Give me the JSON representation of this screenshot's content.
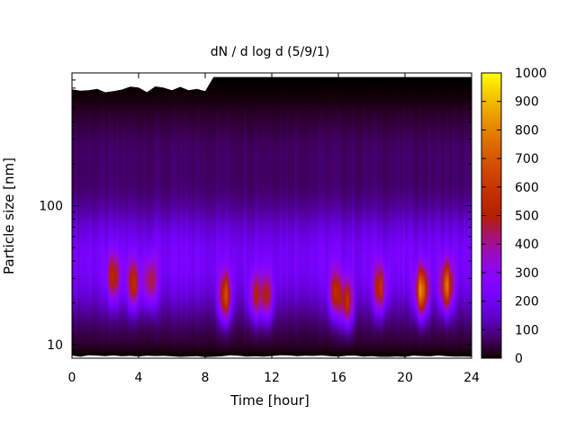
{
  "chart_data": {
    "type": "heatmap",
    "title": "dN / d log d (5/9/1)",
    "xlabel": "Time [hour]",
    "ylabel": "Particle size [nm]",
    "x_range": [
      0,
      24
    ],
    "x_ticks": [
      0,
      4,
      8,
      12,
      16,
      20,
      24
    ],
    "y_scale": "log",
    "y_range": [
      8,
      900
    ],
    "y_ticks": [
      10,
      100
    ],
    "colorbar": {
      "colormap": "gnuplot (black-purple-red-orange-yellow)",
      "range": [
        0,
        1000
      ],
      "ticks": [
        0,
        100,
        200,
        300,
        400,
        500,
        600,
        700,
        800,
        900,
        1000
      ]
    },
    "mode_peaks": [
      {
        "time": 2.5,
        "size_nm": 30,
        "value": 550
      },
      {
        "time": 3.7,
        "size_nm": 27,
        "value": 600
      },
      {
        "time": 4.7,
        "size_nm": 28,
        "value": 560
      },
      {
        "time": 9.2,
        "size_nm": 22,
        "value": 720
      },
      {
        "time": 11.0,
        "size_nm": 22,
        "value": 580
      },
      {
        "time": 11.7,
        "size_nm": 22,
        "value": 600
      },
      {
        "time": 15.8,
        "size_nm": 23,
        "value": 580
      },
      {
        "time": 16.5,
        "size_nm": 20,
        "value": 700
      },
      {
        "time": 18.5,
        "size_nm": 25,
        "value": 650
      },
      {
        "time": 21.0,
        "size_nm": 24,
        "value": 900
      },
      {
        "time": 22.5,
        "size_nm": 26,
        "value": 780
      }
    ],
    "grid": false,
    "legend": "none"
  }
}
